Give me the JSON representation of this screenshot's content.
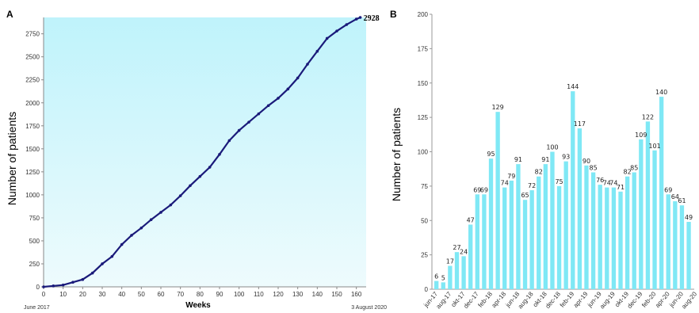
{
  "chart_data": [
    {
      "panel": "A",
      "type": "line",
      "xlabel": "Weeks",
      "ylabel": "Number of patients",
      "xlim": [
        0,
        165
      ],
      "ylim": [
        0,
        2928
      ],
      "xticks": [
        0,
        10,
        20,
        30,
        40,
        50,
        60,
        70,
        80,
        90,
        100,
        110,
        120,
        130,
        140,
        150,
        160
      ],
      "yticks": [
        0,
        250,
        500,
        750,
        1000,
        1250,
        1500,
        1750,
        2000,
        2250,
        2500,
        2750
      ],
      "start_label": "June 2017",
      "end_label": "3 August 2020",
      "final_value": "2928",
      "line_color": "#1a1a7a",
      "fill_color": "#c8f4fa",
      "x": [
        0,
        5,
        10,
        15,
        20,
        25,
        30,
        35,
        40,
        45,
        50,
        55,
        60,
        65,
        70,
        75,
        80,
        85,
        90,
        95,
        100,
        105,
        110,
        115,
        120,
        125,
        130,
        135,
        140,
        145,
        150,
        155,
        160,
        162
      ],
      "y": [
        0,
        10,
        20,
        50,
        80,
        150,
        250,
        330,
        460,
        560,
        640,
        730,
        810,
        890,
        990,
        1100,
        1200,
        1300,
        1440,
        1590,
        1700,
        1790,
        1880,
        1970,
        2050,
        2150,
        2270,
        2420,
        2560,
        2700,
        2780,
        2850,
        2910,
        2928
      ]
    },
    {
      "panel": "B",
      "type": "bar",
      "ylabel": "Number of patients",
      "ylim": [
        0,
        200
      ],
      "yticks": [
        0,
        25,
        50,
        75,
        100,
        125,
        150,
        175,
        200
      ],
      "bar_color": "#7fe8f5",
      "tick_labels": [
        "jun-17",
        "aug-17",
        "okt-17",
        "dec-17",
        "feb-18",
        "apr-18",
        "jun-18",
        "aug-18",
        "okt-18",
        "dec-18",
        "feb-19",
        "apr-19",
        "jun-19",
        "aug-19",
        "okt-19",
        "dec-19",
        "feb-20",
        "apr-20",
        "jun-20",
        "aug-20"
      ],
      "values": [
        6,
        5,
        17,
        27,
        24,
        47,
        69,
        69,
        95,
        129,
        74,
        79,
        91,
        65,
        72,
        82,
        91,
        100,
        75,
        93,
        144,
        117,
        90,
        85,
        76,
        74,
        74,
        71,
        82,
        85,
        109,
        122,
        101,
        140,
        69,
        64,
        61,
        49
      ],
      "value_labels": [
        "6",
        "5",
        "17",
        "27",
        "24",
        "47",
        "69",
        "69",
        "95",
        "129",
        "74",
        "79",
        "91",
        "65",
        "72",
        "82",
        "91",
        "100",
        "75",
        "93",
        "144",
        "117",
        "90",
        "85",
        "76",
        "74",
        "74",
        "71",
        "82",
        "85",
        "109",
        "122",
        "101",
        "140",
        "69",
        "64",
        "61",
        "49"
      ]
    }
  ]
}
